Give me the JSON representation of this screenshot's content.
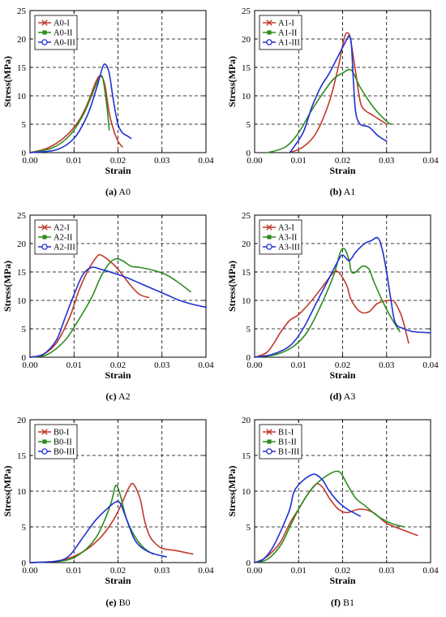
{
  "chart_data": [
    {
      "type": "line",
      "panel": "a",
      "caption": {
        "letter": "(a)",
        "name": "A0"
      },
      "xlabel": "Strain",
      "ylabel": "Stress(MPa)",
      "xlim": [
        0,
        0.04
      ],
      "ylim": [
        0,
        25
      ],
      "xticks": [
        0,
        0.01,
        0.02,
        0.03,
        0.04
      ],
      "xtick_labels": [
        "0.00",
        "0.01",
        "0.02",
        "0.03",
        "0.04"
      ],
      "yticks": [
        0,
        5,
        10,
        15,
        20,
        25
      ],
      "ytick_labels": [
        "0",
        "5",
        "10",
        "15",
        "20",
        "25"
      ],
      "grid": true,
      "legend_position": "top-left",
      "series": [
        {
          "name": "A0-I",
          "color": "#c0392b",
          "marker": "x",
          "x": [
            0,
            0.004,
            0.008,
            0.011,
            0.013,
            0.015,
            0.016,
            0.017,
            0.018,
            0.019,
            0.02,
            0.021
          ],
          "y": [
            0,
            0.8,
            2.8,
            5.5,
            8.5,
            12.5,
            13.5,
            12.0,
            7.0,
            4.0,
            2.0,
            1.0
          ]
        },
        {
          "name": "A0-II",
          "color": "#2e8b1f",
          "marker": "square",
          "x": [
            0,
            0.005,
            0.009,
            0.012,
            0.014,
            0.0155,
            0.0165,
            0.0175,
            0.018
          ],
          "y": [
            0,
            0.8,
            3.0,
            6.5,
            10.0,
            12.8,
            13.2,
            8.0,
            4.0
          ]
        },
        {
          "name": "A0-III",
          "color": "#1f2fd1",
          "marker": "circle",
          "x": [
            0,
            0.006,
            0.01,
            0.013,
            0.015,
            0.0165,
            0.0172,
            0.018,
            0.019,
            0.02,
            0.021,
            0.022,
            0.023
          ],
          "y": [
            0,
            0.5,
            2.5,
            6.5,
            11.0,
            15.0,
            15.5,
            14.0,
            9.0,
            5.0,
            3.5,
            3.0,
            2.5
          ]
        }
      ]
    },
    {
      "type": "line",
      "panel": "b",
      "caption": {
        "letter": "(b)",
        "name": "A1"
      },
      "xlabel": "Strain",
      "ylabel": "Stress(MPa)",
      "xlim": [
        0,
        0.04
      ],
      "ylim": [
        0,
        25
      ],
      "xticks": [
        0,
        0.01,
        0.02,
        0.03,
        0.04
      ],
      "xtick_labels": [
        "0.00",
        "0.01",
        "0.02",
        "0.03",
        "0.04"
      ],
      "yticks": [
        0,
        5,
        10,
        15,
        20,
        25
      ],
      "ytick_labels": [
        "0",
        "5",
        "10",
        "15",
        "20",
        "25"
      ],
      "grid": true,
      "legend_position": "top-left",
      "series": [
        {
          "name": "A1-I",
          "color": "#c0392b",
          "marker": "x",
          "x": [
            0.008,
            0.011,
            0.014,
            0.017,
            0.019,
            0.0205,
            0.0215,
            0.022,
            0.023,
            0.024,
            0.025,
            0.027,
            0.03
          ],
          "y": [
            0,
            1.0,
            3.5,
            9.0,
            15.0,
            20.5,
            20.8,
            19.0,
            14.0,
            9.0,
            7.5,
            6.5,
            5.0
          ]
        },
        {
          "name": "A1-II",
          "color": "#2e8b1f",
          "marker": "square",
          "x": [
            0.003,
            0.007,
            0.01,
            0.013,
            0.016,
            0.018,
            0.02,
            0.022,
            0.024,
            0.027,
            0.03,
            0.031
          ],
          "y": [
            0,
            1.0,
            3.5,
            7.5,
            11.0,
            13.0,
            14.0,
            14.5,
            11.5,
            8.0,
            5.5,
            5.0
          ]
        },
        {
          "name": "A1-III",
          "color": "#1f2fd1",
          "marker": "circle",
          "x": [
            0.008,
            0.011,
            0.013,
            0.015,
            0.017,
            0.019,
            0.021,
            0.0215,
            0.022,
            0.0225,
            0.023,
            0.024,
            0.026,
            0.028,
            0.03
          ],
          "y": [
            0,
            3.5,
            8.0,
            11.5,
            14.0,
            17.0,
            20.0,
            20.5,
            19.0,
            12.0,
            7.0,
            5.0,
            4.5,
            3.0,
            2.0
          ]
        }
      ]
    },
    {
      "type": "line",
      "panel": "c",
      "caption": {
        "letter": "(c)",
        "name": "A2"
      },
      "xlabel": "Strain",
      "ylabel": "Stress(MPa)",
      "xlim": [
        0,
        0.04
      ],
      "ylim": [
        0,
        25
      ],
      "xticks": [
        0,
        0.01,
        0.02,
        0.03,
        0.04
      ],
      "xtick_labels": [
        "0.00",
        "0.01",
        "0.02",
        "0.03",
        "0.04"
      ],
      "yticks": [
        0,
        5,
        10,
        15,
        20,
        25
      ],
      "ytick_labels": [
        "0",
        "5",
        "10",
        "15",
        "20",
        "25"
      ],
      "grid": true,
      "legend_position": "top-left",
      "series": [
        {
          "name": "A2-I",
          "color": "#c0392b",
          "marker": "x",
          "x": [
            0,
            0.003,
            0.006,
            0.009,
            0.011,
            0.013,
            0.015,
            0.016,
            0.018,
            0.02,
            0.023,
            0.025,
            0.027
          ],
          "y": [
            0,
            0.5,
            2.5,
            7.0,
            11.5,
            15.0,
            17.5,
            18.0,
            17.0,
            15.5,
            12.5,
            11.0,
            10.5
          ]
        },
        {
          "name": "A2-II",
          "color": "#2e8b1f",
          "marker": "square",
          "x": [
            0,
            0.004,
            0.008,
            0.011,
            0.014,
            0.016,
            0.018,
            0.0195,
            0.021,
            0.023,
            0.025,
            0.028,
            0.031,
            0.034,
            0.0365
          ],
          "y": [
            0,
            0.5,
            3.0,
            6.5,
            10.5,
            14.0,
            16.5,
            17.3,
            17.0,
            16.0,
            15.8,
            15.3,
            14.5,
            13.0,
            11.5
          ]
        },
        {
          "name": "A2-III",
          "color": "#1f2fd1",
          "marker": "circle",
          "x": [
            0,
            0.003,
            0.006,
            0.008,
            0.01,
            0.012,
            0.014,
            0.016,
            0.019,
            0.022,
            0.025,
            0.028,
            0.031,
            0.034,
            0.037,
            0.04
          ],
          "y": [
            0,
            0.5,
            3.0,
            7.0,
            11.0,
            14.5,
            15.8,
            15.5,
            14.8,
            14.0,
            13.0,
            12.0,
            11.0,
            10.0,
            9.3,
            8.8
          ]
        }
      ]
    },
    {
      "type": "line",
      "panel": "d",
      "caption": {
        "letter": "(d)",
        "name": "A3"
      },
      "xlabel": "Strain",
      "ylabel": "Stress(MPa)",
      "xlim": [
        0,
        0.04
      ],
      "ylim": [
        0,
        25
      ],
      "xticks": [
        0,
        0.01,
        0.02,
        0.03,
        0.04
      ],
      "xtick_labels": [
        "0.00",
        "0.01",
        "0.02",
        "0.03",
        "0.04"
      ],
      "yticks": [
        0,
        5,
        10,
        15,
        20,
        25
      ],
      "ytick_labels": [
        "0",
        "5",
        "10",
        "15",
        "20",
        "25"
      ],
      "grid": true,
      "legend_position": "top-left",
      "series": [
        {
          "name": "A3-I",
          "color": "#c0392b",
          "marker": "x",
          "x": [
            0,
            0.003,
            0.006,
            0.008,
            0.01,
            0.013,
            0.016,
            0.018,
            0.019,
            0.02,
            0.021,
            0.022,
            0.024,
            0.026,
            0.028,
            0.031,
            0.032,
            0.0335,
            0.035
          ],
          "y": [
            0,
            1.0,
            4.5,
            6.5,
            7.5,
            10.0,
            13.0,
            15.0,
            15.0,
            14.0,
            12.5,
            10.0,
            8.0,
            8.0,
            9.5,
            10.0,
            9.5,
            7.0,
            2.5
          ]
        },
        {
          "name": "A3-II",
          "color": "#2e8b1f",
          "marker": "square",
          "x": [
            0,
            0.005,
            0.009,
            0.012,
            0.015,
            0.018,
            0.0195,
            0.0205,
            0.0215,
            0.022,
            0.023,
            0.0245,
            0.026,
            0.027,
            0.029,
            0.031,
            0.033
          ],
          "y": [
            0,
            0.5,
            2.0,
            4.5,
            9.0,
            14.5,
            18.5,
            19.0,
            17.0,
            15.0,
            15.0,
            16.0,
            15.5,
            13.5,
            10.0,
            7.0,
            4.5
          ]
        },
        {
          "name": "A3-III",
          "color": "#1f2fd1",
          "marker": "circle",
          "x": [
            0,
            0.004,
            0.008,
            0.011,
            0.014,
            0.017,
            0.019,
            0.02,
            0.0215,
            0.023,
            0.025,
            0.0265,
            0.028,
            0.029,
            0.03,
            0.031,
            0.032,
            0.034,
            0.036,
            0.04
          ],
          "y": [
            0,
            0.5,
            2.0,
            5.0,
            9.5,
            14.0,
            17.0,
            18.0,
            17.0,
            18.5,
            20.0,
            20.5,
            21.0,
            19.0,
            15.0,
            10.0,
            6.0,
            5.0,
            4.5,
            4.3
          ]
        }
      ]
    },
    {
      "type": "line",
      "panel": "e",
      "caption": {
        "letter": "(e)",
        "name": "B0"
      },
      "xlabel": "Strain",
      "ylabel": "Stress(MPa)",
      "xlim": [
        0,
        0.04
      ],
      "ylim": [
        0,
        20
      ],
      "xticks": [
        0,
        0.01,
        0.02,
        0.03,
        0.04
      ],
      "xtick_labels": [
        "0.00",
        "0.01",
        "0.02",
        "0.03",
        "0.04"
      ],
      "yticks": [
        0,
        5,
        10,
        15,
        20
      ],
      "ytick_labels": [
        "0",
        "5",
        "10",
        "15",
        "20"
      ],
      "grid": true,
      "legend_position": "top-left",
      "series": [
        {
          "name": "B0-I",
          "color": "#c0392b",
          "marker": "x",
          "x": [
            0,
            0.007,
            0.012,
            0.016,
            0.019,
            0.021,
            0.0225,
            0.0235,
            0.025,
            0.026,
            0.027,
            0.028,
            0.03,
            0.033,
            0.037
          ],
          "y": [
            0,
            0.3,
            1.5,
            3.5,
            6.0,
            8.5,
            10.5,
            11.0,
            9.0,
            6.0,
            4.0,
            3.0,
            2.0,
            1.7,
            1.2
          ]
        },
        {
          "name": "B0-II",
          "color": "#2e8b1f",
          "marker": "square",
          "x": [
            0,
            0.008,
            0.012,
            0.015,
            0.017,
            0.0185,
            0.0195,
            0.0205,
            0.022,
            0.024,
            0.026,
            0.028
          ],
          "y": [
            0,
            0.3,
            1.5,
            3.5,
            6.0,
            8.5,
            10.8,
            9.5,
            6.0,
            3.5,
            2.0,
            1.2
          ]
        },
        {
          "name": "B0-III",
          "color": "#1f2fd1",
          "marker": "circle",
          "x": [
            0,
            0.006,
            0.009,
            0.012,
            0.015,
            0.018,
            0.0195,
            0.0205,
            0.022,
            0.024,
            0.027,
            0.031
          ],
          "y": [
            0,
            0.2,
            1.0,
            3.5,
            6.0,
            7.8,
            8.5,
            8.3,
            6.0,
            3.0,
            1.5,
            0.8
          ]
        }
      ]
    },
    {
      "type": "line",
      "panel": "f",
      "caption": {
        "letter": "(f)",
        "name": "B1"
      },
      "xlabel": "Strain",
      "ylabel": "Stress(MPa)",
      "xlim": [
        0,
        0.04
      ],
      "ylim": [
        0,
        20
      ],
      "xticks": [
        0,
        0.01,
        0.02,
        0.03,
        0.04
      ],
      "xtick_labels": [
        "0.00",
        "0.01",
        "0.02",
        "0.03",
        "0.04"
      ],
      "yticks": [
        0,
        5,
        10,
        15,
        20
      ],
      "ytick_labels": [
        "0",
        "5",
        "10",
        "15",
        "20"
      ],
      "grid": true,
      "legend_position": "top-left",
      "series": [
        {
          "name": "B1-I",
          "color": "#c0392b",
          "marker": "x",
          "x": [
            0,
            0.002,
            0.004,
            0.006,
            0.008,
            0.01,
            0.012,
            0.014,
            0.0155,
            0.017,
            0.019,
            0.021,
            0.024,
            0.027,
            0.03,
            0.034,
            0.037
          ],
          "y": [
            0,
            0.5,
            1.5,
            3.0,
            5.5,
            7.5,
            9.5,
            11.0,
            10.5,
            9.0,
            7.5,
            7.0,
            7.5,
            7.0,
            5.5,
            4.5,
            3.8
          ]
        },
        {
          "name": "B1-II",
          "color": "#2e8b1f",
          "marker": "square",
          "x": [
            0,
            0.003,
            0.006,
            0.008,
            0.01,
            0.012,
            0.014,
            0.016,
            0.018,
            0.0195,
            0.021,
            0.023,
            0.025,
            0.028,
            0.031,
            0.034
          ],
          "y": [
            0,
            0.5,
            2.5,
            5.0,
            7.5,
            9.5,
            11.0,
            12.0,
            12.7,
            12.6,
            11.0,
            9.0,
            8.0,
            6.5,
            5.5,
            5.0
          ]
        },
        {
          "name": "B1-III",
          "color": "#1f2fd1",
          "marker": "circle",
          "x": [
            0,
            0.002,
            0.004,
            0.006,
            0.008,
            0.009,
            0.011,
            0.013,
            0.014,
            0.0155,
            0.017,
            0.019,
            0.021,
            0.024
          ],
          "y": [
            0,
            0.5,
            2.0,
            4.5,
            7.5,
            10.0,
            11.5,
            12.3,
            12.3,
            11.5,
            10.0,
            8.5,
            7.5,
            6.5
          ]
        }
      ]
    }
  ]
}
